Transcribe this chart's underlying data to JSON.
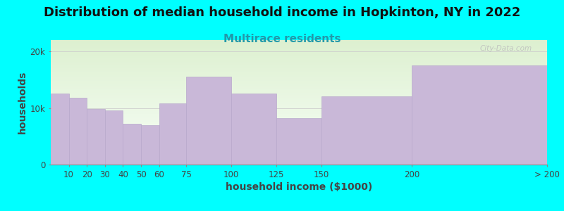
{
  "title": "Distribution of median household income in Hopkinton, NY in 2022",
  "subtitle": "Multirace residents",
  "xlabel": "household income ($1000)",
  "ylabel": "households",
  "background_color": "#00FFFF",
  "plot_bg_top": "#ddf0d0",
  "plot_bg_bottom": "#f8fff8",
  "bar_color": "#c9b8d8",
  "bar_edge_color": "#b8a8cc",
  "categories": [
    "10",
    "20",
    "30",
    "40",
    "50",
    "60",
    "75",
    "100",
    "125",
    "150",
    "200",
    "> 200"
  ],
  "left_edges": [
    0,
    10,
    20,
    30,
    40,
    50,
    60,
    75,
    100,
    125,
    150,
    200
  ],
  "widths": [
    10,
    10,
    10,
    10,
    10,
    10,
    15,
    25,
    25,
    25,
    50,
    75
  ],
  "values": [
    12500,
    11800,
    9800,
    9600,
    7200,
    7000,
    10800,
    15500,
    12500,
    8200,
    12000,
    17500
  ],
  "ylim": [
    0,
    22000
  ],
  "yticks": [
    0,
    10000,
    20000
  ],
  "ytick_labels": [
    "0",
    "10k",
    "20k"
  ],
  "watermark": "City-Data.com",
  "title_fontsize": 13,
  "subtitle_fontsize": 11,
  "axis_label_fontsize": 10
}
